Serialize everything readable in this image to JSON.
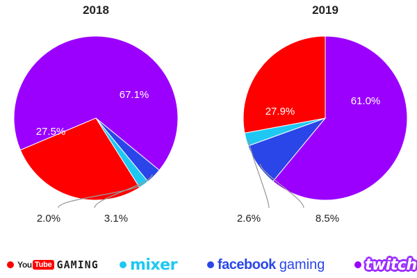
{
  "chart_data": [
    {
      "type": "pie",
      "title": "2018",
      "slices": [
        {
          "label": "YouTube Gaming",
          "value": 27.5,
          "display": "27.5%",
          "color": "#ff0000"
        },
        {
          "label": "Mixer",
          "value": 2.0,
          "display": "2.0%",
          "color": "#1ec8f2"
        },
        {
          "label": "Facebook Gaming",
          "value": 3.1,
          "display": "3.1%",
          "color": "#2a46e8"
        },
        {
          "label": "Twitch",
          "value": 67.1,
          "display": "67.1%",
          "color": "#9b00ff"
        }
      ]
    },
    {
      "type": "pie",
      "title": "2019",
      "slices": [
        {
          "label": "YouTube Gaming",
          "value": 27.9,
          "display": "27.9%",
          "color": "#ff0000"
        },
        {
          "label": "Mixer",
          "value": 2.6,
          "display": "2.6%",
          "color": "#1ec8f2"
        },
        {
          "label": "Facebook Gaming",
          "value": 8.5,
          "display": "8.5%",
          "color": "#2a46e8"
        },
        {
          "label": "Twitch",
          "value": 61.0,
          "display": "61.0%",
          "color": "#9b00ff"
        }
      ]
    }
  ],
  "legend": {
    "youtube": {
      "pre": "You",
      "box": "Tube",
      "suffix": "GAMING",
      "color": "#ff0000"
    },
    "mixer": {
      "text": "mixer",
      "color": "#1ec8f2"
    },
    "facebook": {
      "main": "facebook",
      "sub": "gaming",
      "color": "#2a46e8"
    },
    "twitch": {
      "text": "twitch",
      "color": "#9b00ff"
    }
  },
  "colors": {
    "leader_line": "#9a9a9a",
    "label_text": "#222222",
    "label_inside": "#ffffff"
  }
}
